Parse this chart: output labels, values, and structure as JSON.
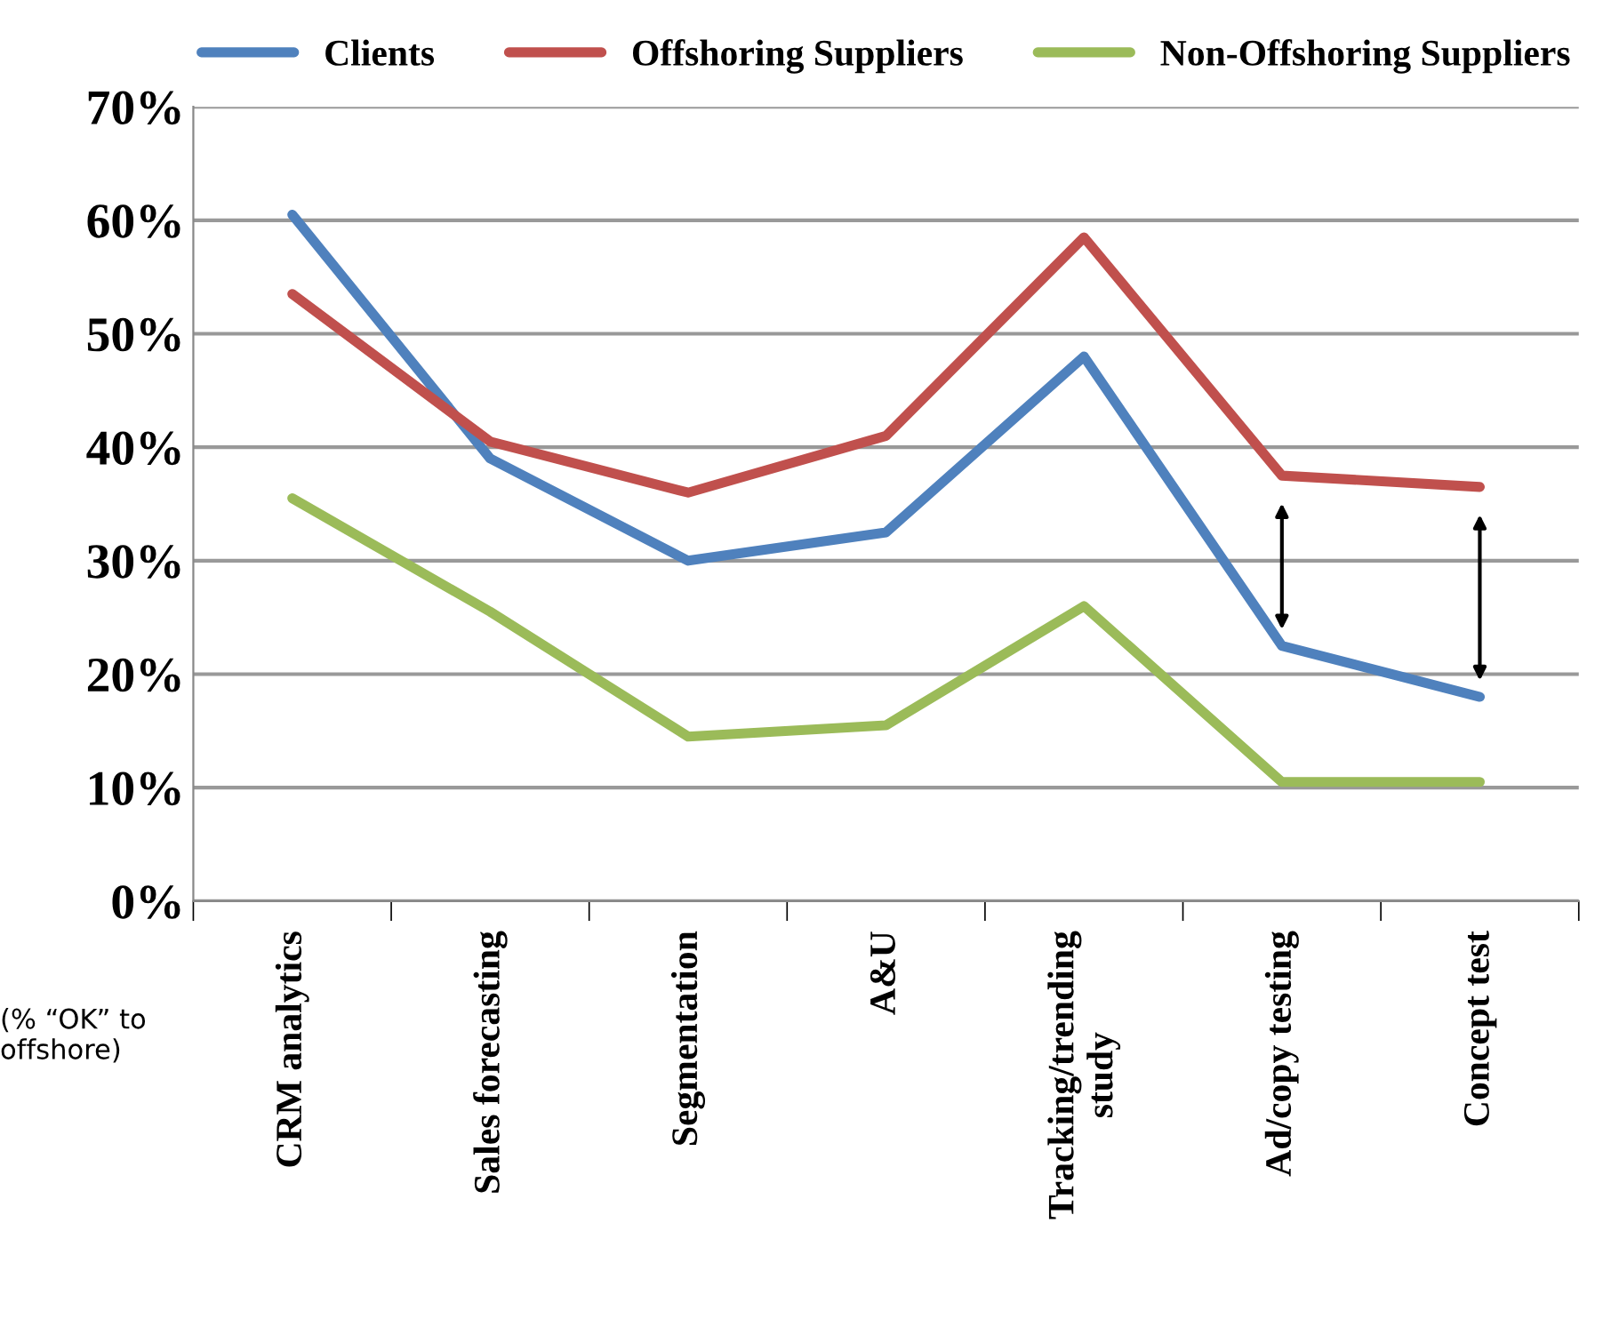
{
  "chart_data": {
    "type": "line",
    "categories": [
      "CRM analytics",
      "Sales forecasting",
      "Segmentation",
      "A&U",
      "Tracking/trending\nstudy",
      "Ad/copy testing",
      "Concept test"
    ],
    "series": [
      {
        "name": "Clients",
        "color": "#4f81bd",
        "values": [
          60.5,
          39,
          30,
          32.5,
          48,
          22.5,
          18
        ]
      },
      {
        "name": "Offshoring Suppliers",
        "color": "#c0504d",
        "values": [
          53.5,
          40.5,
          36,
          41,
          58.5,
          37.5,
          36.5
        ]
      },
      {
        "name": "Non-Offshoring Suppliers",
        "color": "#9bbb59",
        "values": [
          35.5,
          25.5,
          14.5,
          15.5,
          26,
          10.5,
          10.5
        ]
      }
    ],
    "ylim": [
      0,
      70
    ],
    "yticks": [
      {
        "value": 0,
        "label": "0%"
      },
      {
        "value": 10,
        "label": "10%"
      },
      {
        "value": 20,
        "label": "20%"
      },
      {
        "value": 30,
        "label": "30%"
      },
      {
        "value": 40,
        "label": "40%"
      },
      {
        "value": 50,
        "label": "50%"
      },
      {
        "value": 60,
        "label": "60%"
      },
      {
        "value": 70,
        "label": "70%"
      }
    ],
    "grid": "y",
    "legend": "top",
    "marker": "none",
    "line_style": "solid",
    "annotations": [
      "(% “OK” to\noffshore)"
    ]
  }
}
